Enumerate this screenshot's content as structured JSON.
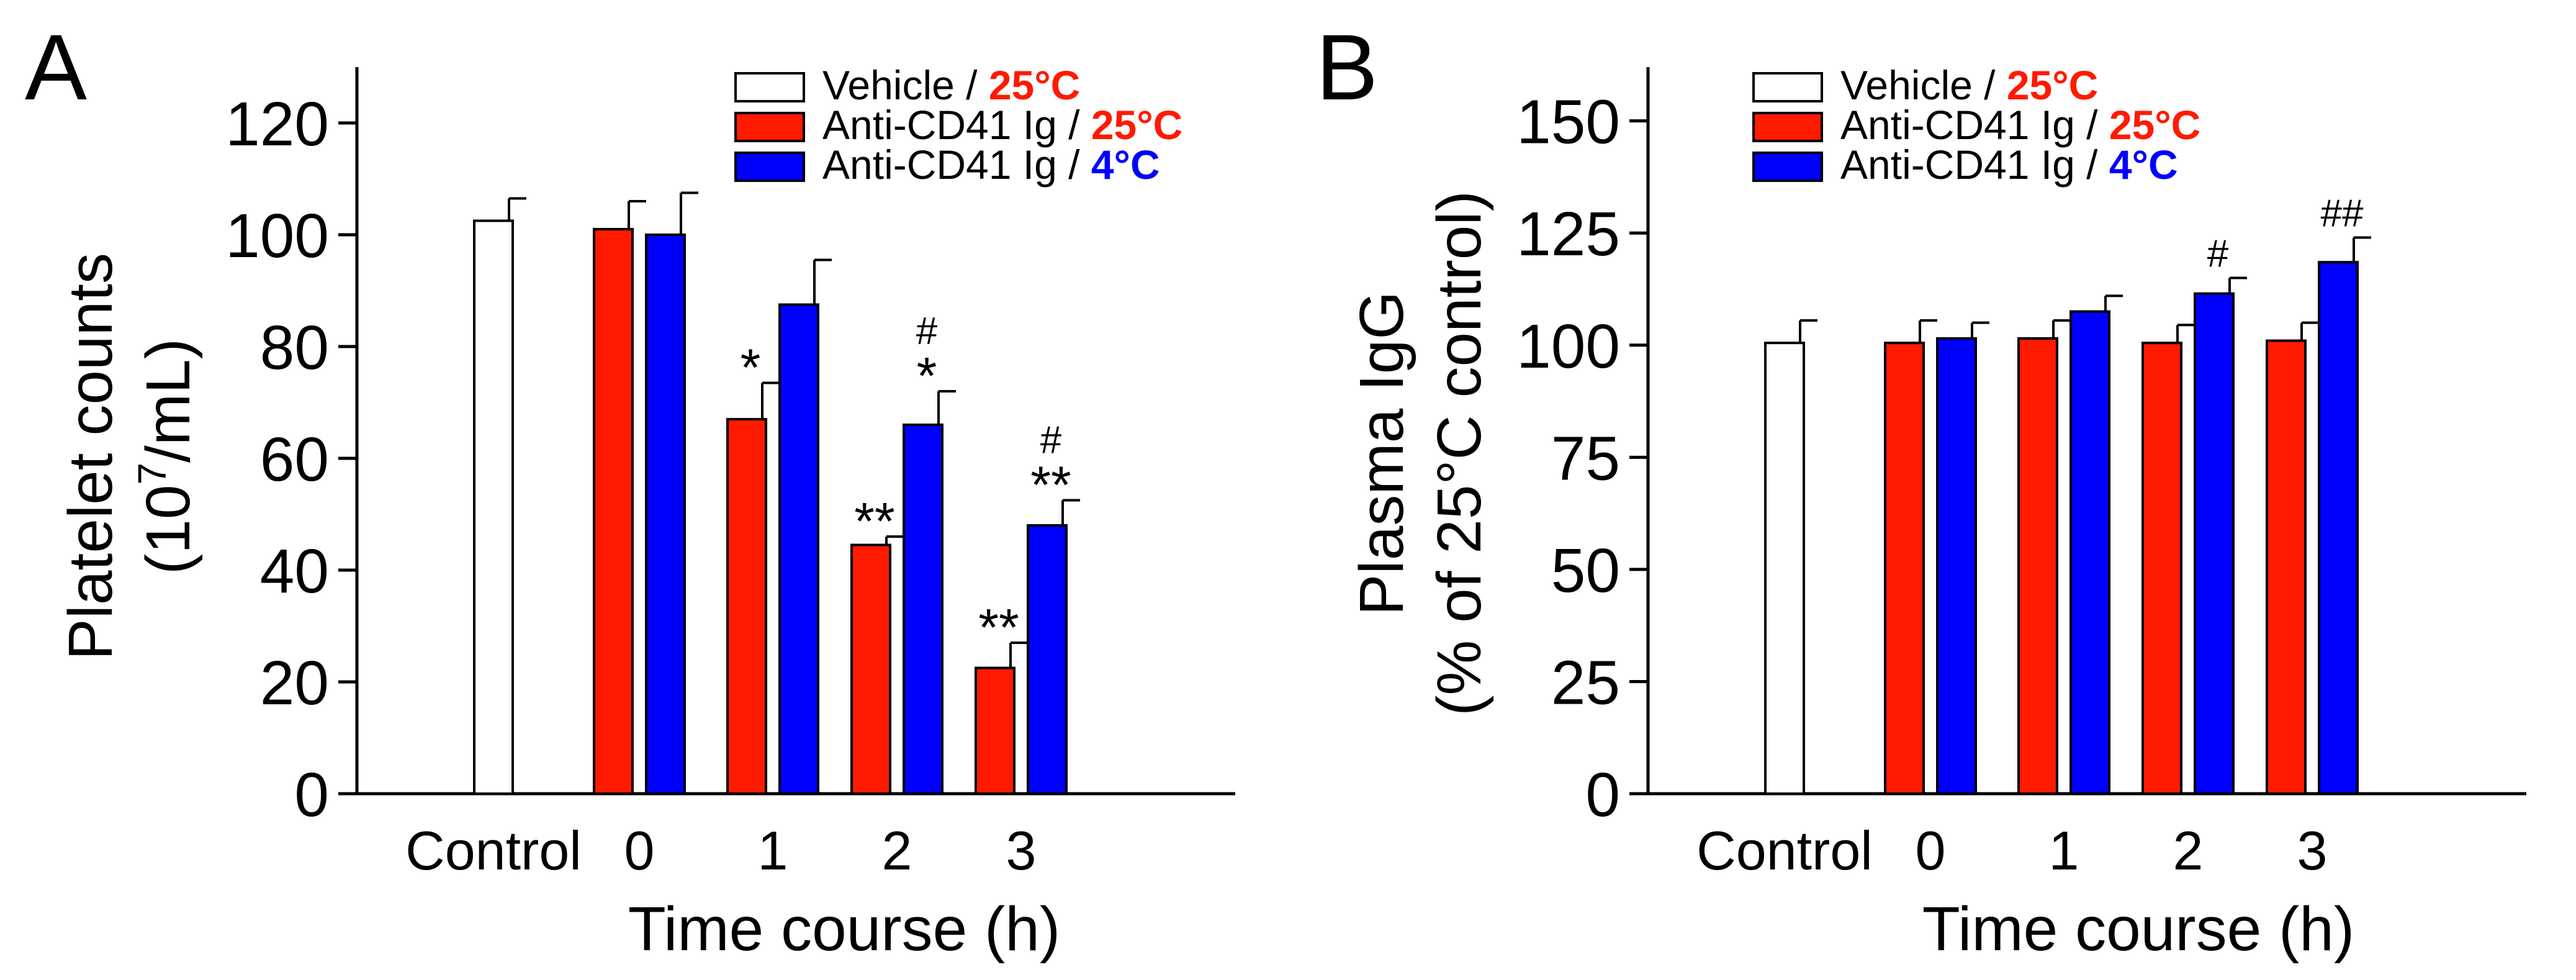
{
  "panels": [
    {
      "letter": "A",
      "ylabel_line1": "Platelet counts",
      "ylabel_line2_pre": "(10",
      "ylabel_line2_sup": "7",
      "ylabel_line2_post": "/mL)",
      "xlabel": "Time course (h)"
    },
    {
      "letter": "B",
      "ylabel_line1": "Plasma IgG",
      "ylabel_line2_pre": "(% of 25°C control)",
      "ylabel_line2_sup": "",
      "ylabel_line2_post": "",
      "xlabel": "Time course (h)"
    }
  ],
  "legend": [
    {
      "name": "Vehicle",
      "temp": "25°C",
      "fill": "#ffffff",
      "temp_color": "#ff1a00"
    },
    {
      "name": "Anti-CD41 Ig",
      "temp": "25°C",
      "fill": "#ff1a00",
      "temp_color": "#ff1a00"
    },
    {
      "name": "Anti-CD41 Ig",
      "temp": "4°C",
      "fill": "#0000ff",
      "temp_color": "#0000ff"
    }
  ],
  "chart_data": [
    {
      "type": "bar",
      "panel": "A",
      "categories": [
        "Control",
        "0",
        "1",
        "2",
        "3"
      ],
      "xlabel": "Time course (h)",
      "ylabel": "Platelet counts (10^7/mL)",
      "ylim": [
        0,
        130
      ],
      "yticks": [
        0,
        20,
        40,
        60,
        80,
        100,
        120
      ],
      "series": [
        {
          "name": "Vehicle / 25°C",
          "color": "#ffffff",
          "values": [
            102.5,
            null,
            null,
            null,
            null
          ],
          "errors": [
            4,
            null,
            null,
            null,
            null
          ],
          "annotations": [
            "",
            "",
            "",
            "",
            ""
          ]
        },
        {
          "name": "Anti-CD41 Ig / 25°C",
          "color": "#ff1a00",
          "values": [
            null,
            101,
            67,
            44.5,
            22.5
          ],
          "errors": [
            null,
            5,
            6.5,
            1.5,
            4.5
          ],
          "annotations": [
            "",
            "",
            "*",
            "**",
            "**"
          ]
        },
        {
          "name": "Anti-CD41 Ig / 4°C",
          "color": "#0000ff",
          "values": [
            null,
            100,
            87.5,
            66,
            48
          ],
          "errors": [
            null,
            7.5,
            8,
            6,
            4.5
          ],
          "annotations": [
            "",
            "",
            "",
            "#\n*",
            "#\n**"
          ]
        }
      ]
    },
    {
      "type": "bar",
      "panel": "B",
      "categories": [
        "Control",
        "0",
        "1",
        "2",
        "3"
      ],
      "xlabel": "Time course (h)",
      "ylabel": "Plasma IgG (% of 25°C control)",
      "ylim": [
        0,
        162
      ],
      "yticks": [
        0,
        25,
        50,
        75,
        100,
        125,
        150
      ],
      "series": [
        {
          "name": "Vehicle / 25°C",
          "color": "#ffffff",
          "values": [
            100.5,
            null,
            null,
            null,
            null
          ],
          "errors": [
            5,
            null,
            null,
            null,
            null
          ],
          "annotations": [
            "",
            "",
            "",
            "",
            ""
          ]
        },
        {
          "name": "Anti-CD41 Ig / 25°C",
          "color": "#ff1a00",
          "values": [
            null,
            100.5,
            101.5,
            100.5,
            101
          ],
          "errors": [
            null,
            5,
            4,
            4,
            4
          ],
          "annotations": [
            "",
            "",
            "",
            "",
            ""
          ]
        },
        {
          "name": "Anti-CD41 Ig / 4°C",
          "color": "#0000ff",
          "values": [
            null,
            101.5,
            107.5,
            111.5,
            118.5
          ],
          "errors": [
            null,
            3.5,
            3.5,
            3.5,
            5.5
          ],
          "annotations": [
            "",
            "",
            "",
            "#",
            "##"
          ]
        }
      ]
    }
  ]
}
